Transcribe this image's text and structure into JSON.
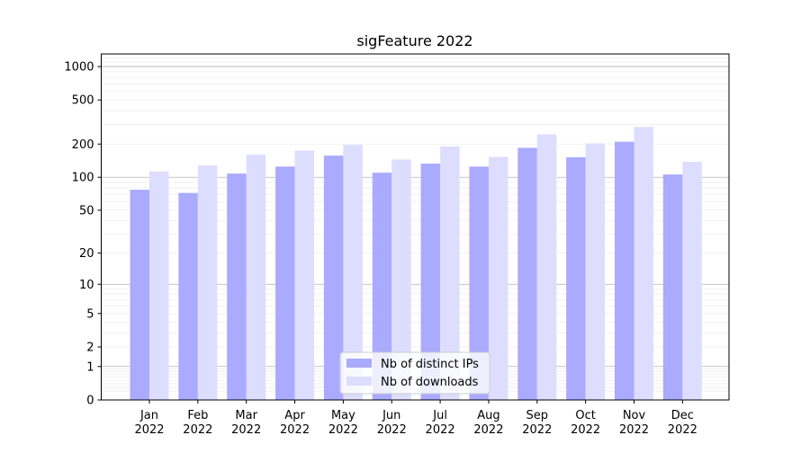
{
  "chart_data": {
    "type": "bar",
    "title": "sigFeature 2022",
    "xlabel": "",
    "ylabel": "",
    "y_scale": "symlog",
    "ylim": [
      0,
      1300
    ],
    "y_ticks": [
      0,
      1,
      2,
      5,
      10,
      20,
      50,
      100,
      200,
      500,
      1000
    ],
    "y_tick_labels": [
      "0",
      "1",
      "2",
      "5",
      "10",
      "20",
      "50",
      "100",
      "200",
      "500",
      "1000"
    ],
    "categories": [
      [
        "Jan",
        "2022"
      ],
      [
        "Feb",
        "2022"
      ],
      [
        "Mar",
        "2022"
      ],
      [
        "Apr",
        "2022"
      ],
      [
        "May",
        "2022"
      ],
      [
        "Jun",
        "2022"
      ],
      [
        "Jul",
        "2022"
      ],
      [
        "Aug",
        "2022"
      ],
      [
        "Sep",
        "2022"
      ],
      [
        "Oct",
        "2022"
      ],
      [
        "Nov",
        "2022"
      ],
      [
        "Dec",
        "2022"
      ]
    ],
    "series": [
      {
        "name": "Nb of distinct IPs",
        "color": "#aaaaff",
        "values": [
          77,
          72,
          108,
          125,
          157,
          110,
          133,
          125,
          185,
          152,
          210,
          106
        ]
      },
      {
        "name": "Nb of downloads",
        "color": "#ddddff",
        "values": [
          113,
          128,
          160,
          175,
          197,
          145,
          190,
          153,
          245,
          203,
          285,
          138
        ]
      }
    ],
    "grid": true,
    "legend_position": "bottom-center"
  }
}
